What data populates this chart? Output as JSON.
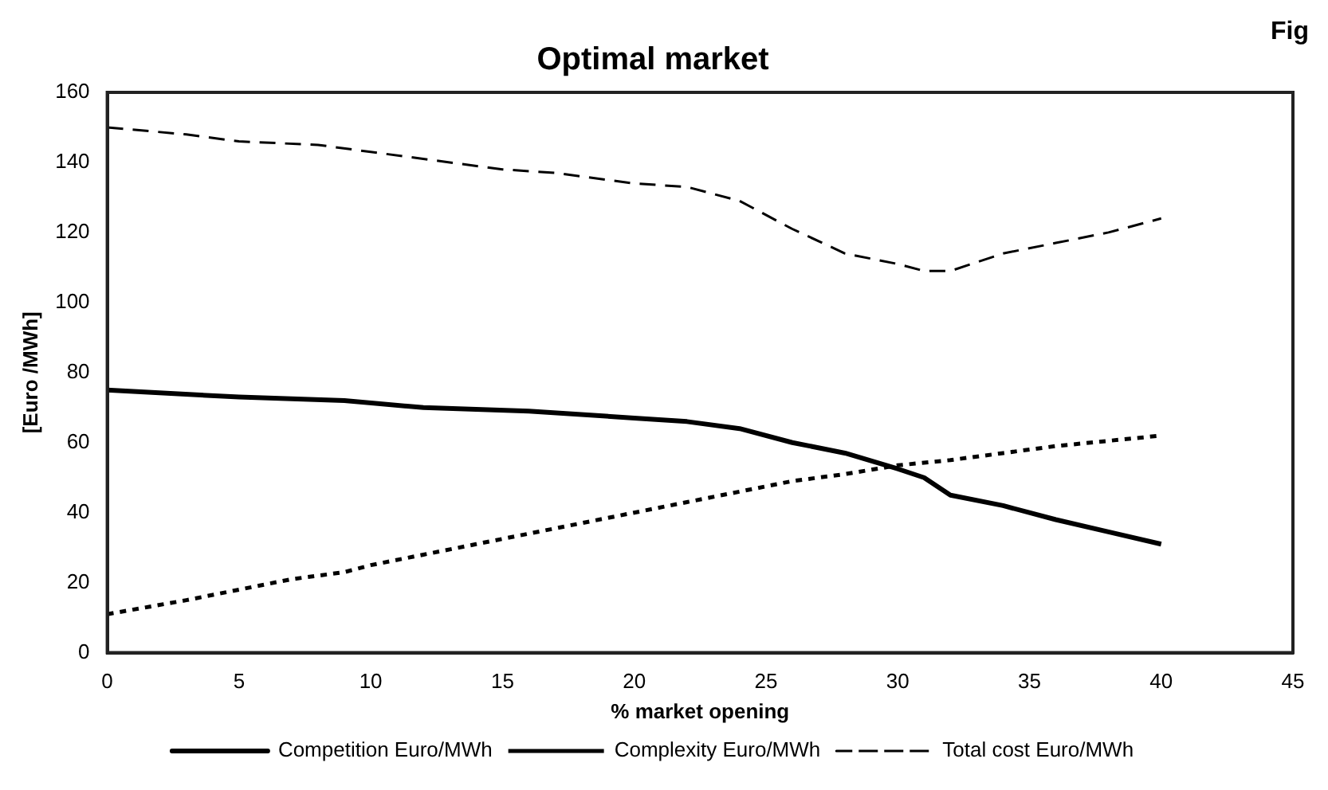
{
  "chart_data": {
    "type": "line",
    "title": "Optimal market",
    "xlabel": "% market opening",
    "ylabel": "[Euro /MWh]",
    "annotations": [
      "Fig"
    ],
    "xlim": [
      0,
      45
    ],
    "xticks": [
      0,
      5,
      10,
      15,
      20,
      25,
      30,
      35,
      40,
      45
    ],
    "ylim": [
      0,
      160
    ],
    "yticks": [
      0,
      20,
      40,
      60,
      80,
      100,
      120,
      140,
      160
    ],
    "grid": false,
    "legend": "bottom",
    "marker": "none",
    "series": [
      {
        "name": "Competition Euro/MWh",
        "color": "#000000",
        "line_style": "solid",
        "x": [
          0,
          5,
          9,
          12,
          16,
          20,
          22,
          24,
          26,
          28,
          30,
          31,
          32,
          34,
          36,
          38,
          40
        ],
        "values": [
          75,
          73,
          72,
          70,
          69,
          67,
          66,
          64,
          60,
          57,
          52.5,
          50,
          45,
          42,
          38,
          34.5,
          31
        ]
      },
      {
        "name": "Complexity Euro/MWh",
        "color": "#000000",
        "line_style": "dotted",
        "x": [
          0,
          3,
          5,
          7,
          9,
          10,
          12,
          14,
          16,
          18,
          20,
          22,
          24,
          26,
          28,
          30,
          32,
          34,
          36,
          38,
          40
        ],
        "values": [
          11,
          15,
          18,
          21,
          23,
          25,
          28,
          31,
          34,
          37,
          40,
          43,
          46,
          49,
          51,
          53.5,
          55,
          57,
          59,
          60.5,
          62
        ]
      },
      {
        "name": "Total cost Euro/MWh",
        "color": "#000000",
        "line_style": "dashed",
        "x": [
          0,
          3,
          5,
          8,
          10,
          13,
          15,
          17,
          20,
          22,
          24,
          26,
          28,
          30,
          31,
          32,
          34,
          36,
          38,
          40
        ],
        "values": [
          150,
          148,
          146,
          145,
          143,
          140,
          138,
          137,
          134,
          133,
          129,
          121,
          114,
          111,
          109,
          109,
          114,
          117,
          120,
          124
        ]
      }
    ]
  }
}
